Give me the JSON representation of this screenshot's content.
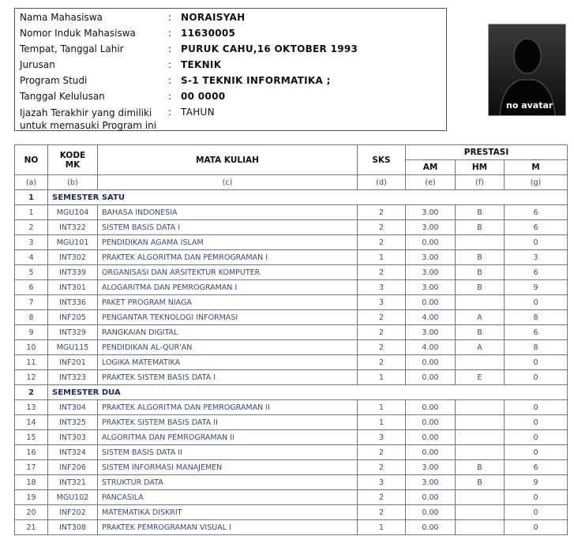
{
  "info": {
    "separator": ":",
    "rows": [
      {
        "label": "Nama Mahasiswa",
        "value": "NORAISYAH"
      },
      {
        "label": "Nomor Induk Mahasiswa",
        "value": "11630005"
      },
      {
        "label": "Tempat, Tanggal Lahir",
        "value": "PURUK CAHU,16 OKTOBER 1993"
      },
      {
        "label": "Jurusan",
        "value": "TEKNIK"
      },
      {
        "label": "Program Studi",
        "value": "S-1 TEKNIK INFORMATIKA ;"
      },
      {
        "label": "Tanggal Kelulusan",
        "value": "00 0000"
      }
    ],
    "ijazah": {
      "label_lines": [
        "Ijazah Terakhir yang dimiliki",
        "untuk memasuki Program ini"
      ],
      "value": "TAHUN"
    }
  },
  "avatar": {
    "text": "no avatar"
  },
  "table": {
    "headers": {
      "no": "NO",
      "kode": [
        "KODE",
        "MK"
      ],
      "mata_kuliah": "MATA KULIAH",
      "sks": "SKS",
      "prestasi": "PRESTASI",
      "am": "AM",
      "hm": "HM",
      "m": "M"
    },
    "letters": [
      "(a)",
      "(b)",
      "(c)",
      "(d)",
      "(e)",
      "(f)",
      "(g)"
    ],
    "semesters": [
      {
        "no": "1",
        "name": "SEMESTER SATU",
        "rows": [
          {
            "no": "1",
            "kode": "MGU104",
            "mk": "BAHASA INDONESIA",
            "sks": "2",
            "am": "3.00",
            "hm": "B",
            "m": "6"
          },
          {
            "no": "2",
            "kode": "INT322",
            "mk": "SISTEM BASIS DATA I",
            "sks": "2",
            "am": "3.00",
            "hm": "B",
            "m": "6"
          },
          {
            "no": "3",
            "kode": "MGU101",
            "mk": "PENDIDIKAN AGAMA ISLAM",
            "sks": "2",
            "am": "0.00",
            "m": "0"
          },
          {
            "no": "4",
            "kode": "INT302",
            "mk": "PRAKTEK ALGORITMA DAN PEMROGRAMAN I",
            "sks": "1",
            "am": "3.00",
            "hm": "B",
            "m": "3"
          },
          {
            "no": "5",
            "kode": "INT339",
            "mk": "ORGANISASI DAN ARSITEKTUR KOMPUTER",
            "sks": "2",
            "am": "3.00",
            "hm": "B",
            "m": "6"
          },
          {
            "no": "6",
            "kode": "INT301",
            "mk": "ALOGARITMA DAN PEMROGRAMAN I",
            "sks": "3",
            "am": "3.00",
            "hm": "B",
            "m": "9"
          },
          {
            "no": "7",
            "kode": "INT336",
            "mk": "PAKET PROGRAM NIAGA",
            "sks": "3",
            "am": "0.00",
            "m": "0"
          },
          {
            "no": "8",
            "kode": "INF205",
            "mk": "PENGANTAR TEKNOLOGI INFORMASI",
            "sks": "2",
            "am": "4.00",
            "hm": "A",
            "m": "8"
          },
          {
            "no": "9",
            "kode": "INT329",
            "mk": "RANGKAIAN DIGITAL",
            "sks": "2",
            "am": "3.00",
            "hm": "B",
            "m": "6"
          },
          {
            "no": "10",
            "kode": "MGU115",
            "mk": "PENDIDIKAN AL-QUR'AN",
            "sks": "2",
            "am": "4.00",
            "hm": "A",
            "m": "8"
          },
          {
            "no": "11",
            "kode": "INF201",
            "mk": "LOGIKA MATEMATIKA",
            "sks": "2",
            "am": "0.00",
            "m": "0"
          },
          {
            "no": "12",
            "kode": "INT323",
            "mk": "PRAKTEK SISTEM BASIS DATA I",
            "sks": "1",
            "am": "0.00",
            "hm": "E",
            "m": "0"
          }
        ]
      },
      {
        "no": "2",
        "name": "SEMESTER DUA",
        "rows": [
          {
            "no": "13",
            "kode": "INT304",
            "mk": "PRAKTEK ALGORITMA DAN PEMROGRAMAN II",
            "sks": "1",
            "am": "0.00",
            "m": "0"
          },
          {
            "no": "14",
            "kode": "INT325",
            "mk": "PRAKTEK SISTEM BASIS DATA II",
            "sks": "1",
            "am": "0.00",
            "m": "0"
          },
          {
            "no": "15",
            "kode": "INT303",
            "mk": "ALGORITMA DAN PEMROGRAMAN II",
            "sks": "3",
            "am": "0.00",
            "m": "0"
          },
          {
            "no": "16",
            "kode": "INT324",
            "mk": "SISTEM BASIS DATA II",
            "sks": "2",
            "am": "0.00",
            "m": "0"
          },
          {
            "no": "17",
            "kode": "INF206",
            "mk": "SISTEM INFORMASI MANAJEMEN",
            "sks": "2",
            "am": "3.00",
            "hm": "B",
            "m": "6"
          },
          {
            "no": "18",
            "kode": "INT321",
            "mk": "STRUKTUR DATA",
            "sks": "3",
            "am": "3.00",
            "hm": "B",
            "m": "9"
          },
          {
            "no": "19",
            "kode": "MGU102",
            "mk": "PANCASILA",
            "sks": "2",
            "am": "0.00",
            "m": "0"
          },
          {
            "no": "20",
            "kode": "INF202",
            "mk": "MATEMATIKA DISKRIT",
            "sks": "2",
            "am": "0.00",
            "m": "0"
          },
          {
            "no": "21",
            "kode": "INT308",
            "mk": "PRAKTEK PEMROGRAMAN VISUAL I",
            "sks": "1",
            "am": "0.00",
            "m": "0"
          }
        ]
      }
    ]
  }
}
